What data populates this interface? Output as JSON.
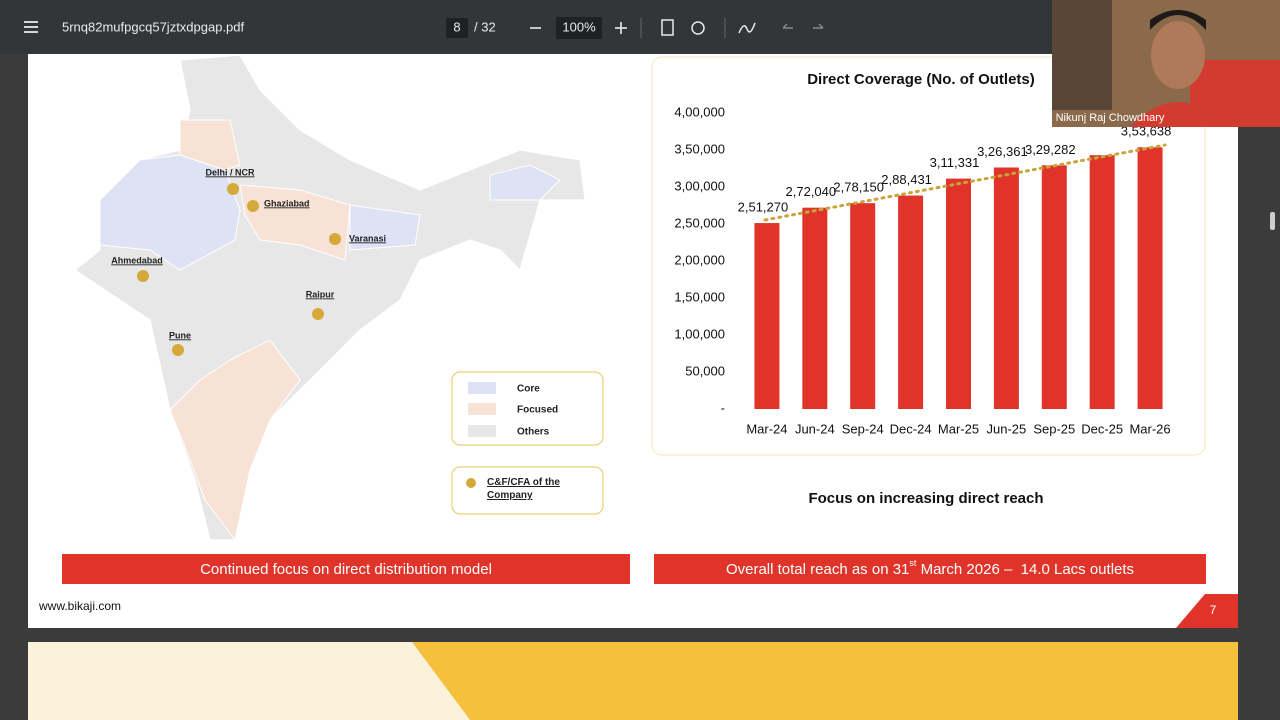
{
  "toolbar": {
    "filename": "5rnq82mufpgcq57jztxdpgap.pdf",
    "page": "8",
    "page_total": "/ 32",
    "zoom": "100%"
  },
  "webcam": {
    "name": "Nikunj Raj Chowdhary"
  },
  "map": {
    "cities": [
      "Delhi / NCR",
      "Ghaziabad",
      "Varanasi",
      "Ahmedabad",
      "Raipur",
      "Pune"
    ],
    "legend": [
      "Core",
      "Focused",
      "Others"
    ],
    "cf_legend": "C&F/CFA of the Company"
  },
  "chart_data": {
    "type": "bar",
    "title": "Direct Coverage (No. of Outlets)",
    "categories": [
      "Mar-24",
      "Jun-24",
      "Sep-24",
      "Dec-24",
      "Mar-25",
      "Jun-25",
      "Sep-25",
      "Dec-25",
      "Mar-26"
    ],
    "values": [
      251270,
      272040,
      278150,
      288431,
      311331,
      326361,
      329282,
      343000,
      353638
    ],
    "value_labels": [
      "2,51,270",
      "2,72,040",
      "2,78,150",
      "2,88,431",
      "3,11,331",
      "3,26,361",
      "3,29,282",
      null,
      "3,53,638"
    ],
    "color": "#e0342b",
    "ylim": [
      0,
      400000
    ],
    "yticks": [
      {
        "value": 0,
        "label": "-"
      },
      {
        "value": 50000,
        "label": "50,000"
      },
      {
        "value": 100000,
        "label": "1,00,000"
      },
      {
        "value": 150000,
        "label": "1,50,000"
      },
      {
        "value": 200000,
        "label": "2,00,000"
      },
      {
        "value": 250000,
        "label": "2,50,000"
      },
      {
        "value": 300000,
        "label": "3,00,000"
      },
      {
        "value": 350000,
        "label": "3,50,000"
      },
      {
        "value": 400000,
        "label": "4,00,000"
      }
    ],
    "grid": false
  },
  "chart_caption": "Focus on increasing direct reach",
  "banners": {
    "left": "Continued focus on direct distribution model",
    "right": {
      "before": "Overall total reach as on 31",
      "sup": "st",
      "after": " March 2026 –  14.0 Lacs outlets"
    }
  },
  "footer": {
    "website": "www.bikaji.com",
    "page_number": "7"
  }
}
